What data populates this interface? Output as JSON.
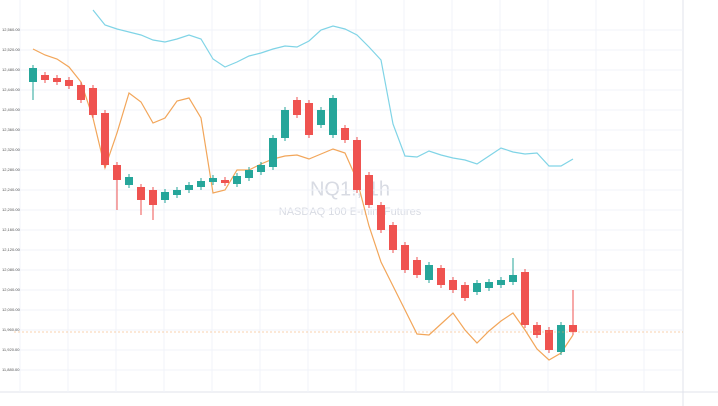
{
  "chart_data": {
    "type": "candlestick",
    "watermark_title": "NQ1!, 1h",
    "watermark_subtitle": "NASDAQ 100 E-mini Futures",
    "ylim": [
      11840,
      12600
    ],
    "yticks": [
      {
        "value": 11880,
        "label": "11,880.00"
      },
      {
        "value": 11920,
        "label": "11,920.00"
      },
      {
        "value": 11960,
        "label": "11,960.00"
      },
      {
        "value": 12000,
        "label": "12,000.00"
      },
      {
        "value": 12040,
        "label": "12,040.00"
      },
      {
        "value": 12080,
        "label": "12,080.00"
      },
      {
        "value": 12120,
        "label": "12,120.00"
      },
      {
        "value": 12160,
        "label": "12,160.00"
      },
      {
        "value": 12200,
        "label": "12,200.00"
      },
      {
        "value": 12240,
        "label": "12,240.00"
      },
      {
        "value": 12280,
        "label": "12,280.00"
      },
      {
        "value": 12320,
        "label": "12,320.00"
      },
      {
        "value": 12360,
        "label": "12,360.00"
      },
      {
        "value": 12400,
        "label": "12,400.00"
      },
      {
        "value": 12440,
        "label": "12,440.00"
      },
      {
        "value": 12480,
        "label": "12,480.00"
      },
      {
        "value": 12520,
        "label": "12,520.00"
      },
      {
        "value": 12560,
        "label": "12,560.00"
      }
    ],
    "up_color": "#26a69a",
    "down_color": "#ef5350",
    "open": [
      12456,
      12470,
      12464,
      12460,
      12450,
      12444,
      12394,
      12290,
      12250,
      12246,
      12240,
      12220,
      12230,
      12240,
      12246,
      12256,
      12260,
      12252,
      12264,
      12276,
      12286,
      12344,
      12420,
      12414,
      12370,
      12350,
      12364,
      12340,
      12270,
      12210,
      12170,
      12130,
      12100,
      12060,
      12084,
      12060,
      12050,
      12036,
      12044,
      12050,
      12056,
      12076,
      11970,
      11960,
      11916,
      11970
    ],
    "high": [
      12490,
      12476,
      12470,
      12466,
      12456,
      12450,
      12400,
      12296,
      12272,
      12252,
      12246,
      12242,
      12246,
      12256,
      12264,
      12270,
      12266,
      12274,
      12286,
      12296,
      12350,
      12406,
      12426,
      12420,
      12406,
      12430,
      12370,
      12346,
      12276,
      12216,
      12176,
      12136,
      12106,
      12096,
      12090,
      12066,
      12056,
      12060,
      12062,
      12066,
      12104,
      12082,
      11976,
      11966,
      11976,
      12040
    ],
    "low": [
      12420,
      12454,
      12450,
      12442,
      12414,
      12384,
      12284,
      12200,
      12244,
      12190,
      12180,
      12214,
      12224,
      12234,
      12240,
      12250,
      12248,
      12246,
      12258,
      12270,
      12280,
      12338,
      12384,
      12344,
      12364,
      12344,
      12334,
      12234,
      12204,
      12154,
      12114,
      12074,
      12064,
      12054,
      12044,
      12034,
      12018,
      12030,
      12038,
      12044,
      12050,
      11964,
      11944,
      11914,
      11910,
      11950
    ],
    "close": [
      12484,
      12460,
      12456,
      12448,
      12420,
      12390,
      12290,
      12260,
      12266,
      12220,
      12210,
      12236,
      12240,
      12250,
      12258,
      12264,
      12254,
      12268,
      12280,
      12290,
      12344,
      12400,
      12390,
      12350,
      12400,
      12424,
      12340,
      12240,
      12210,
      12160,
      12120,
      12080,
      12070,
      12090,
      12050,
      12040,
      12024,
      12054,
      12056,
      12060,
      12070,
      11970,
      11950,
      11920,
      11970,
      11956
    ],
    "series": [
      {
        "color": "#f2a65a",
        "values": [
          12522,
          12510,
          12502,
          12486,
          12456,
          12384,
          12284,
          12354,
          12434,
          12416,
          12374,
          12384,
          12418,
          12424,
          12384,
          12234,
          12240,
          12280,
          12280,
          12292,
          12302,
          12308,
          12310,
          12302,
          12312,
          12322,
          12314,
          12260,
          12168,
          12096,
          12048,
          12000,
          11952,
          11950,
          11972,
          11994,
          11960,
          11934,
          11958,
          11978,
          11994,
          11960,
          11922,
          11900,
          11914,
          11950
        ]
      },
      {
        "color": "#80d4e6",
        "values": [
          null,
          null,
          null,
          null,
          null,
          12600,
          12570,
          12562,
          12556,
          12550,
          12540,
          12536,
          12542,
          12550,
          12542,
          12502,
          12486,
          12496,
          12508,
          12514,
          12522,
          12528,
          12526,
          12538,
          12560,
          12568,
          12562,
          12550,
          12526,
          12500,
          12372,
          12308,
          12306,
          12318,
          12310,
          12304,
          12300,
          12292,
          12308,
          12324,
          12316,
          12312,
          12314,
          12288,
          12288,
          12302
        ]
      }
    ],
    "last_price": 11956
  }
}
